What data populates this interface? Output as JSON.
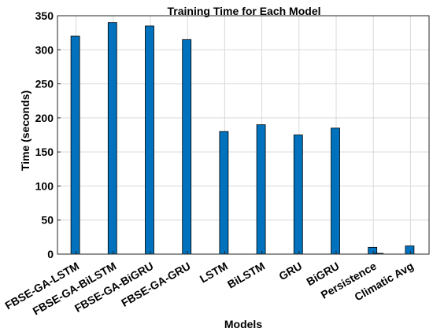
{
  "chart_data": {
    "type": "bar",
    "title": "Training  Time for Each Model",
    "xlabel": "Models",
    "ylabel": "Time (seconds)",
    "categories": [
      "FBSE-GA-LSTM",
      "FBSE-GA-BiLSTM",
      "FBSE-GA-BiGRU",
      "FBSE-GA-GRU",
      "LSTM",
      "BiLSTM",
      "GRU",
      "BiGRU",
      "Persistence",
      "Climatic Avg"
    ],
    "series": [
      {
        "values": [
          320,
          340,
          335,
          315,
          180,
          190,
          175,
          185,
          10,
          12
        ]
      },
      {
        "values": [
          null,
          null,
          null,
          null,
          null,
          null,
          null,
          null,
          1,
          null
        ]
      }
    ],
    "ylim": [
      0,
      350
    ],
    "yticks": [
      0,
      50,
      100,
      150,
      200,
      250,
      300,
      350
    ],
    "grid": true,
    "legend": "none",
    "colors": {
      "bar": "#0072BD",
      "bar_edge": "#000000",
      "grid": "#d9d9d9",
      "axis": "#262626"
    }
  }
}
